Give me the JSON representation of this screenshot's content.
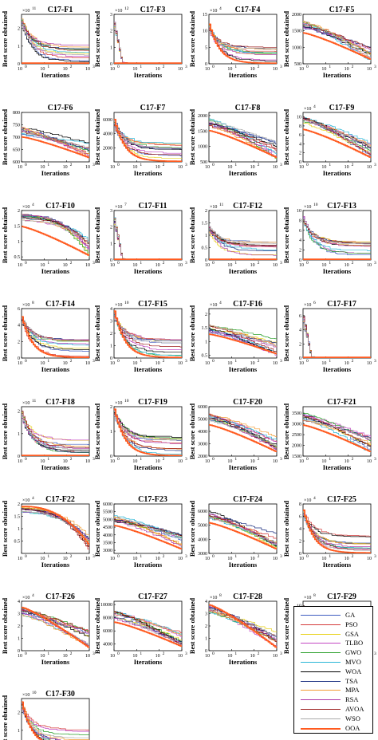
{
  "axis_labels": {
    "x": "Iterations",
    "y": "Best score obtained"
  },
  "x_ticks": [
    "10",
    "10",
    "10",
    "10"
  ],
  "x_tick_exponents": [
    "0",
    "1",
    "2",
    "3"
  ],
  "legend": [
    {
      "name": "GA",
      "color": "#3e5bbf"
    },
    {
      "name": "PSO",
      "color": "#d43a3a"
    },
    {
      "name": "GSA",
      "color": "#e8d21c"
    },
    {
      "name": "TLBO",
      "color": "#c247c2"
    },
    {
      "name": "GWO",
      "color": "#2ca02c"
    },
    {
      "name": "MVO",
      "color": "#29b6d6"
    },
    {
      "name": "WOA",
      "color": "#000000"
    },
    {
      "name": "TSA",
      "color": "#1b2f80"
    },
    {
      "name": "MPA",
      "color": "#f39c34"
    },
    {
      "name": "RSA",
      "color": "#b03aa8"
    },
    {
      "name": "AVOA",
      "color": "#9b1b1b"
    },
    {
      "name": "WSO",
      "color": "#aaaaaa"
    },
    {
      "name": "OOA",
      "color": "#ff5a1f"
    }
  ],
  "chart_data": [
    {
      "type": "line",
      "title": "C17-F1",
      "exponent": "11",
      "y_ticks": [
        "0",
        "1",
        "2"
      ],
      "ylim": [
        0,
        2.8
      ],
      "start": 2.6,
      "shape": "fast",
      "ooa": "floor"
    },
    {
      "type": "line",
      "title": "C17-F3",
      "exponent": "12",
      "y_ticks": [
        "0",
        "1",
        "2",
        "3"
      ],
      "ylim": [
        0,
        3
      ],
      "start": 2.6,
      "shape": "spike",
      "ooa": "floor"
    },
    {
      "type": "line",
      "title": "C17-F4",
      "exponent": "4",
      "y_ticks": [
        "0",
        "5",
        "10",
        "15"
      ],
      "ylim": [
        0,
        15
      ],
      "start": 12,
      "shape": "fast",
      "ooa": "fast"
    },
    {
      "type": "line",
      "title": "C17-F5",
      "exponent": "",
      "y_ticks": [
        "500",
        "1000",
        "1500",
        "2000"
      ],
      "ylim": [
        500,
        2000
      ],
      "start": 1800,
      "shape": "gradual",
      "ooa": "lower"
    },
    {
      "type": "line",
      "title": "C17-F6",
      "exponent": "",
      "y_ticks": [
        "600",
        "650",
        "700",
        "750",
        "800"
      ],
      "ylim": [
        600,
        800
      ],
      "start": 740,
      "shape": "gradual",
      "ooa": "lower"
    },
    {
      "type": "line",
      "title": "C17-F7",
      "exponent": "",
      "y_ticks": [
        "2000",
        "4000",
        "6000"
      ],
      "ylim": [
        0,
        7000
      ],
      "start": 6000,
      "shape": "fast",
      "ooa": "fast"
    },
    {
      "type": "line",
      "title": "C17-F8",
      "exponent": "",
      "y_ticks": [
        "500",
        "1000",
        "1500",
        "2000"
      ],
      "ylim": [
        500,
        2100
      ],
      "start": 1900,
      "shape": "gradual",
      "ooa": "lower"
    },
    {
      "type": "line",
      "title": "C17-F9",
      "exponent": "4",
      "y_ticks": [
        "0",
        "2",
        "4",
        "6",
        "8",
        "10"
      ],
      "ylim": [
        0,
        11
      ],
      "start": 10,
      "shape": "gradual",
      "ooa": "lower"
    },
    {
      "type": "line",
      "title": "C17-F10",
      "exponent": "4",
      "y_ticks": [
        "0.5",
        "1",
        "1.5",
        "2"
      ],
      "ylim": [
        0.4,
        2
      ],
      "start": 1.9,
      "shape": "late",
      "ooa": "lower"
    },
    {
      "type": "line",
      "title": "C17-F11",
      "exponent": "7",
      "y_ticks": [
        "0",
        "1",
        "2",
        "3"
      ],
      "ylim": [
        0,
        3
      ],
      "start": 2.6,
      "shape": "spike",
      "ooa": "floor"
    },
    {
      "type": "line",
      "title": "C17-F12",
      "exponent": "11",
      "y_ticks": [
        "0",
        "0.5",
        "1",
        "1.5",
        "2"
      ],
      "ylim": [
        0,
        2
      ],
      "start": 1.4,
      "shape": "fast",
      "ooa": "floor"
    },
    {
      "type": "line",
      "title": "C17-F13",
      "exponent": "10",
      "y_ticks": [
        "0",
        "2",
        "4",
        "6",
        "8",
        "10"
      ],
      "ylim": [
        0,
        10
      ],
      "start": 9,
      "shape": "fast",
      "ooa": "floor"
    },
    {
      "type": "line",
      "title": "C17-F14",
      "exponent": "8",
      "y_ticks": [
        "0",
        "2",
        "4",
        "6"
      ],
      "ylim": [
        0,
        6
      ],
      "start": 5,
      "shape": "fast",
      "ooa": "fast"
    },
    {
      "type": "line",
      "title": "C17-F15",
      "exponent": "10",
      "y_ticks": [
        "0",
        "1",
        "2",
        "3",
        "4"
      ],
      "ylim": [
        0,
        4
      ],
      "start": 3.8,
      "shape": "fast",
      "ooa": "fast"
    },
    {
      "type": "line",
      "title": "C17-F16",
      "exponent": "4",
      "y_ticks": [
        "0.5",
        "1",
        "1.5",
        "2"
      ],
      "ylim": [
        0.4,
        2.2
      ],
      "start": 1.6,
      "shape": "gradual",
      "ooa": "lower"
    },
    {
      "type": "line",
      "title": "C17-F17",
      "exponent": "6",
      "y_ticks": [
        "0",
        "2",
        "4",
        "6"
      ],
      "ylim": [
        0,
        7
      ],
      "start": 6,
      "shape": "spike",
      "ooa": "floor"
    },
    {
      "type": "line",
      "title": "C17-F18",
      "exponent": "11",
      "y_ticks": [
        "0",
        "1",
        "2"
      ],
      "ylim": [
        0,
        2.2
      ],
      "start": 2,
      "shape": "fast",
      "ooa": "floor"
    },
    {
      "type": "line",
      "title": "C17-F19",
      "exponent": "10",
      "y_ticks": [
        "0",
        "1",
        "2"
      ],
      "ylim": [
        0,
        2
      ],
      "start": 1.9,
      "shape": "fast",
      "ooa": "fast"
    },
    {
      "type": "line",
      "title": "C17-F20",
      "exponent": "",
      "y_ticks": [
        "2000",
        "3000",
        "4000",
        "5000",
        "6000"
      ],
      "ylim": [
        2000,
        6000
      ],
      "start": 5500,
      "shape": "gradual",
      "ooa": "lower"
    },
    {
      "type": "line",
      "title": "C17-F21",
      "exponent": "",
      "y_ticks": [
        "1500",
        "2000",
        "2500",
        "3000",
        "3500"
      ],
      "ylim": [
        1500,
        3800
      ],
      "start": 3500,
      "shape": "gradual",
      "ooa": "lower"
    },
    {
      "type": "line",
      "title": "C17-F22",
      "exponent": "4",
      "y_ticks": [
        "0.5",
        "1",
        "1.5",
        "2"
      ],
      "ylim": [
        0,
        2
      ],
      "start": 1.9,
      "shape": "late",
      "ooa": "late"
    },
    {
      "type": "line",
      "title": "C17-F23",
      "exponent": "",
      "y_ticks": [
        "3000",
        "3500",
        "4000",
        "4500",
        "5000",
        "5500",
        "6000"
      ],
      "ylim": [
        2800,
        6000
      ],
      "start": 5300,
      "shape": "gradual",
      "ooa": "lower"
    },
    {
      "type": "line",
      "title": "C17-F24",
      "exponent": "",
      "y_ticks": [
        "3000",
        "4000",
        "5000",
        "6000"
      ],
      "ylim": [
        3000,
        6500
      ],
      "start": 6000,
      "shape": "gradual",
      "ooa": "lower"
    },
    {
      "type": "line",
      "title": "C17-F25",
      "exponent": "4",
      "y_ticks": [
        "0",
        "2",
        "4",
        "6",
        "8"
      ],
      "ylim": [
        0,
        8
      ],
      "start": 7,
      "shape": "fast",
      "ooa": "fast"
    },
    {
      "type": "line",
      "title": "C17-F26",
      "exponent": "4",
      "y_ticks": [
        "0",
        "1",
        "2",
        "3",
        "4"
      ],
      "ylim": [
        0,
        4
      ],
      "start": 3.5,
      "shape": "gradual",
      "ooa": "gradual"
    },
    {
      "type": "line",
      "title": "C17-F27",
      "exponent": "",
      "y_ticks": [
        "4000",
        "6000",
        "8000",
        "10000"
      ],
      "ylim": [
        3000,
        10500
      ],
      "start": 9000,
      "shape": "gradual",
      "ooa": "lower"
    },
    {
      "type": "line",
      "title": "C17-F28",
      "exponent": "8",
      "y_ticks": [
        "0",
        "1",
        "2",
        "3",
        "4"
      ],
      "ylim": [
        0,
        4
      ],
      "start": 3.7,
      "shape": "gradual",
      "ooa": "gradual"
    },
    {
      "type": "line",
      "title": "C17-F29",
      "exponent": "8",
      "y_ticks": [
        "0",
        "2",
        "4",
        "6",
        "8",
        "10"
      ],
      "ylim": [
        0,
        11
      ],
      "start": 10,
      "shape": "spike",
      "ooa": "floor"
    },
    {
      "type": "line",
      "title": "C17-F30",
      "exponent": "10",
      "y_ticks": [
        "0",
        "1",
        "2"
      ],
      "ylim": [
        0,
        2.8
      ],
      "start": 2.6,
      "shape": "fast",
      "ooa": "fast"
    }
  ]
}
